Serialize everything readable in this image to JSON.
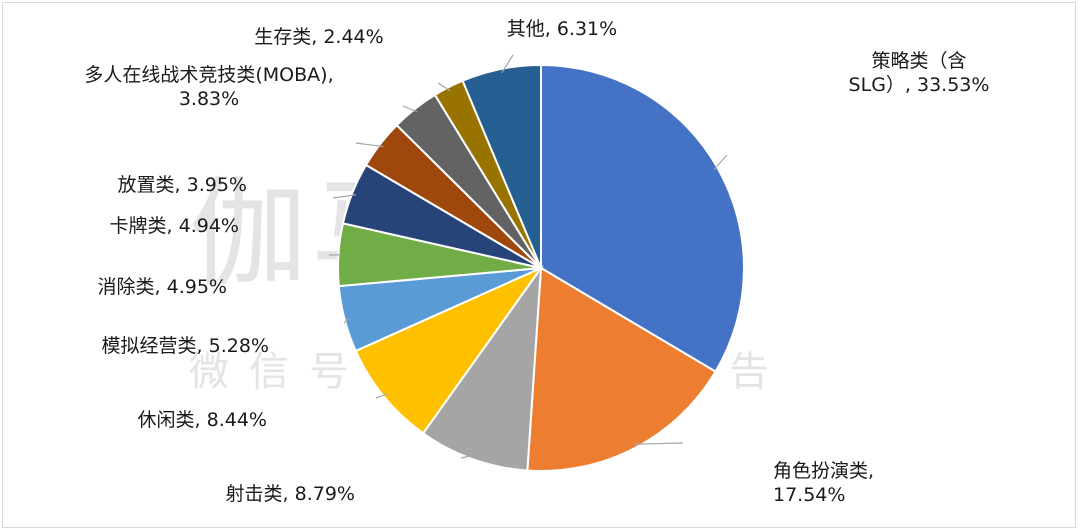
{
  "watermark": {
    "main": "伽马数据",
    "sub": "微信号：游戏产业报告"
  },
  "chart_data": {
    "type": "pie",
    "title": "",
    "slices": [
      {
        "name": "策略类（含SLG）",
        "value": 33.53,
        "label": "33.53%",
        "color": "#4472c4"
      },
      {
        "name": "角色扮演类",
        "value": 17.54,
        "label": "17.54%",
        "color": "#ed7d31"
      },
      {
        "name": "射击类",
        "value": 8.79,
        "label": "8.79%",
        "color": "#a5a5a5"
      },
      {
        "name": "休闲类",
        "value": 8.44,
        "label": "8.44%",
        "color": "#ffc000"
      },
      {
        "name": "模拟经营类",
        "value": 5.28,
        "label": "5.28%",
        "color": "#5b9bd5"
      },
      {
        "name": "消除类",
        "value": 4.95,
        "label": "4.95%",
        "color": "#70ad47"
      },
      {
        "name": "卡牌类",
        "value": 4.94,
        "label": "4.94%",
        "color": "#264478"
      },
      {
        "name": "放置类",
        "value": 3.95,
        "label": "3.95%",
        "color": "#9e480e"
      },
      {
        "name": "多人在线战术竞技类(MOBA)",
        "value": 3.83,
        "label": "3.83%",
        "color": "#636363"
      },
      {
        "name": "生存类",
        "value": 2.44,
        "label": "2.44%",
        "color": "#997300"
      },
      {
        "name": "其他",
        "value": 6.31,
        "label": "6.31%",
        "color": "#255e91"
      }
    ],
    "label_text": [
      [
        "策略类（含",
        "SLG）, 33.53%"
      ],
      [
        "角色扮演类,",
        "17.54%"
      ],
      [
        "射击类, 8.79%"
      ],
      [
        "休闲类, 8.44%"
      ],
      [
        "模拟经营类, 5.28%"
      ],
      [
        "消除类, 4.95%"
      ],
      [
        "卡牌类, 4.94%"
      ],
      [
        "放置类, 3.95%"
      ],
      [
        "多人在线战术竞技类(MOBA),",
        "3.83%"
      ],
      [
        "生存类, 2.44%"
      ],
      [
        "其他, 6.31%"
      ]
    ],
    "legend": "none"
  }
}
